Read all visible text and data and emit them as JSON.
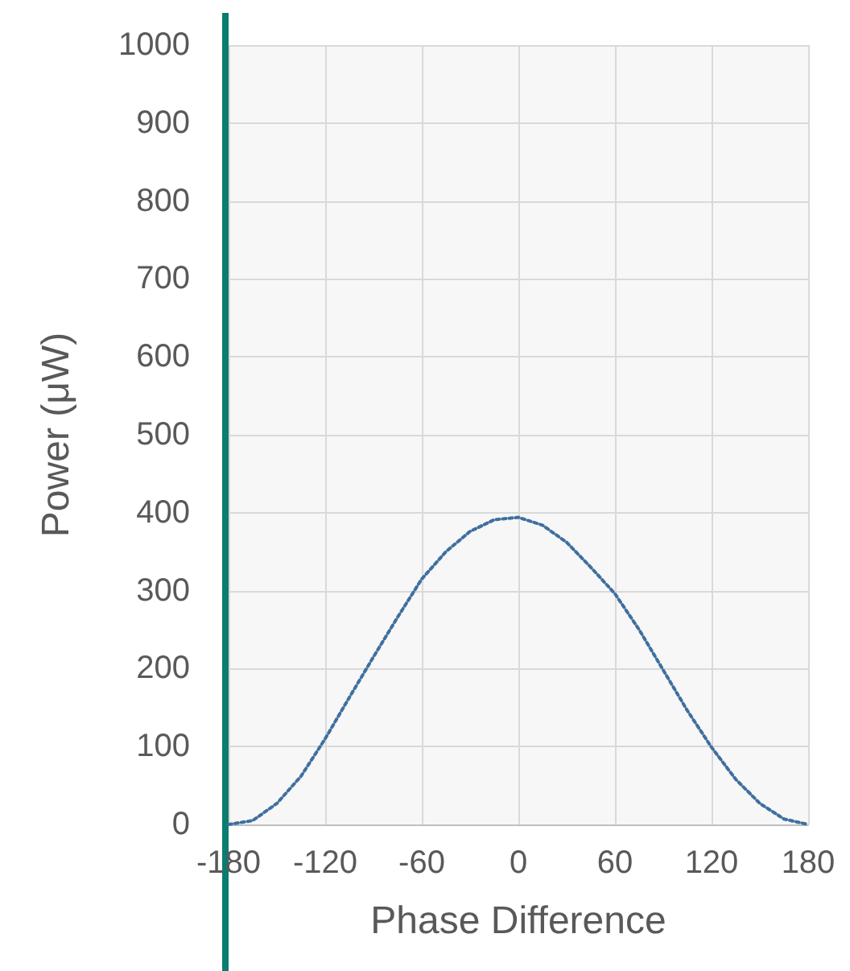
{
  "chart_data": {
    "type": "line",
    "xlabel": "Phase Difference",
    "ylabel": "Power (μW)",
    "x": [
      -180,
      -165,
      -150,
      -135,
      -120,
      -105,
      -90,
      -75,
      -60,
      -45,
      -30,
      -15,
      0,
      15,
      30,
      45,
      60,
      75,
      90,
      105,
      120,
      135,
      150,
      165,
      180
    ],
    "series": [
      {
        "color": "#3f6fa0",
        "values": [
          0,
          5,
          27,
          62,
          110,
          163,
          215,
          266,
          315,
          350,
          376,
          391,
          394,
          384,
          362,
          330,
          296,
          250,
          198,
          146,
          99,
          58,
          27,
          7,
          0
        ]
      }
    ],
    "xlim": [
      -180,
      180
    ],
    "xticks": [
      -180,
      -120,
      -60,
      0,
      60,
      120,
      180
    ],
    "ylim": [
      0,
      1000
    ],
    "yticks": [
      0,
      100,
      200,
      300,
      400,
      500,
      600,
      700,
      800,
      900,
      1000
    ],
    "grid": true,
    "marker": "none",
    "line_style": "dotted"
  }
}
